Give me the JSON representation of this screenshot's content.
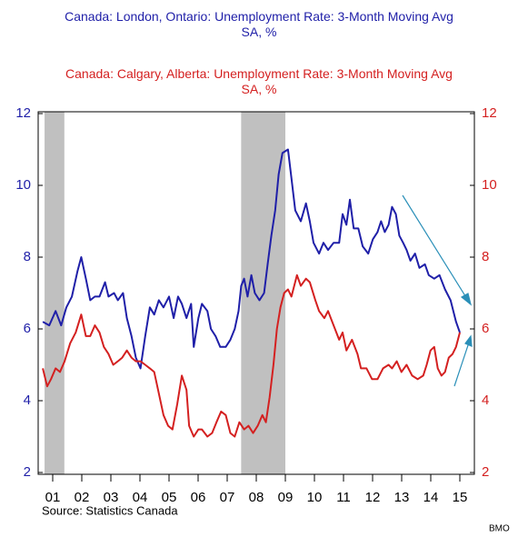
{
  "chart_data": {
    "type": "line",
    "xlim": [
      2001,
      2016
    ],
    "xticks": [
      {
        "value": 2001.5,
        "label": "01"
      },
      {
        "value": 2002.5,
        "label": "02"
      },
      {
        "value": 2003.5,
        "label": "03"
      },
      {
        "value": 2004.5,
        "label": "04"
      },
      {
        "value": 2005.5,
        "label": "05"
      },
      {
        "value": 2006.5,
        "label": "06"
      },
      {
        "value": 2007.5,
        "label": "07"
      },
      {
        "value": 2008.5,
        "label": "08"
      },
      {
        "value": 2009.5,
        "label": "09"
      },
      {
        "value": 2010.5,
        "label": "10"
      },
      {
        "value": 2011.5,
        "label": "11"
      },
      {
        "value": 2012.5,
        "label": "12"
      },
      {
        "value": 2013.5,
        "label": "13"
      },
      {
        "value": 2014.5,
        "label": "14"
      },
      {
        "value": 2015.5,
        "label": "15"
      }
    ],
    "ylim": [
      2,
      12
    ],
    "yticks": [
      2,
      4,
      6,
      8,
      10,
      12
    ],
    "y2lim": [
      2,
      12
    ],
    "y2ticks": [
      2,
      4,
      6,
      8,
      10,
      12
    ],
    "shaded_periods": [
      [
        2001.22,
        2001.9
      ],
      [
        2007.98,
        2009.5
      ]
    ],
    "shade_color": "#c0c0c0",
    "source": "Source:  Statistics Canada",
    "credit": "BMO",
    "series": [
      {
        "name": "Canada: London, Ontario: Unemployment Rate: 3-Month Moving Avg SA, %",
        "color": "#1f1fa8",
        "x": [
          2001.16,
          2001.38,
          2001.6,
          2001.79,
          2001.97,
          2002.16,
          2002.35,
          2002.48,
          2002.64,
          2002.79,
          2002.95,
          2003.11,
          2003.3,
          2003.42,
          2003.61,
          2003.74,
          2003.92,
          2004.05,
          2004.21,
          2004.36,
          2004.52,
          2004.68,
          2004.84,
          2004.99,
          2005.15,
          2005.31,
          2005.5,
          2005.66,
          2005.81,
          2005.94,
          2006.1,
          2006.26,
          2006.35,
          2006.51,
          2006.63,
          2006.82,
          2006.94,
          2007.1,
          2007.26,
          2007.45,
          2007.61,
          2007.76,
          2007.89,
          2007.98,
          2008.08,
          2008.2,
          2008.33,
          2008.45,
          2008.61,
          2008.77,
          2008.89,
          2009.02,
          2009.15,
          2009.27,
          2009.4,
          2009.59,
          2009.71,
          2009.84,
          2010.03,
          2010.21,
          2010.34,
          2010.47,
          2010.66,
          2010.81,
          2010.97,
          2011.16,
          2011.35,
          2011.47,
          2011.6,
          2011.72,
          2011.85,
          2012.01,
          2012.16,
          2012.35,
          2012.51,
          2012.67,
          2012.79,
          2012.92,
          2013.05,
          2013.17,
          2013.3,
          2013.42,
          2013.55,
          2013.67,
          2013.8,
          2013.96,
          2014.11,
          2014.3,
          2014.43,
          2014.62,
          2014.8,
          2014.99,
          2015.18,
          2015.37,
          2015.5
        ],
        "values": [
          6.2,
          6.1,
          6.5,
          6.1,
          6.6,
          6.9,
          7.6,
          8.0,
          7.4,
          6.8,
          6.9,
          6.9,
          7.3,
          6.9,
          7.0,
          6.8,
          7.0,
          6.3,
          5.8,
          5.2,
          4.9,
          5.8,
          6.6,
          6.4,
          6.8,
          6.6,
          6.9,
          6.3,
          6.9,
          6.7,
          6.3,
          6.7,
          5.5,
          6.3,
          6.7,
          6.5,
          6.0,
          5.8,
          5.5,
          5.5,
          5.7,
          6.0,
          6.5,
          7.2,
          7.4,
          6.9,
          7.5,
          7.0,
          6.8,
          7.0,
          7.8,
          8.6,
          9.3,
          10.3,
          10.9,
          11.0,
          10.2,
          9.3,
          9.0,
          9.5,
          9.0,
          8.4,
          8.1,
          8.4,
          8.2,
          8.4,
          8.4,
          9.2,
          8.9,
          9.6,
          8.8,
          8.8,
          8.3,
          8.1,
          8.5,
          8.7,
          9.0,
          8.7,
          8.9,
          9.4,
          9.2,
          8.6,
          8.4,
          8.2,
          7.9,
          8.1,
          7.7,
          7.8,
          7.5,
          7.4,
          7.5,
          7.1,
          6.8,
          6.2,
          5.9
        ]
      },
      {
        "name": "Canada: Calgary, Alberta: Unemployment Rate: 3-Month Moving Avg SA, %",
        "color": "#d42020",
        "axis": "y2",
        "x": [
          2001.16,
          2001.31,
          2001.44,
          2001.6,
          2001.75,
          2001.91,
          2002.1,
          2002.29,
          2002.48,
          2002.64,
          2002.79,
          2002.95,
          2003.11,
          2003.26,
          2003.42,
          2003.58,
          2003.74,
          2003.89,
          2004.05,
          2004.21,
          2004.36,
          2004.52,
          2004.68,
          2004.84,
          2004.99,
          2005.15,
          2005.31,
          2005.47,
          2005.62,
          2005.78,
          2005.94,
          2006.1,
          2006.19,
          2006.35,
          2006.51,
          2006.63,
          2006.82,
          2006.98,
          2007.13,
          2007.29,
          2007.45,
          2007.61,
          2007.76,
          2007.92,
          2008.08,
          2008.23,
          2008.39,
          2008.55,
          2008.71,
          2008.83,
          2008.96,
          2009.09,
          2009.21,
          2009.33,
          2009.46,
          2009.59,
          2009.71,
          2009.9,
          2010.03,
          2010.21,
          2010.34,
          2010.53,
          2010.66,
          2010.84,
          2010.97,
          2011.16,
          2011.35,
          2011.47,
          2011.6,
          2011.79,
          2011.98,
          2012.1,
          2012.29,
          2012.48,
          2012.67,
          2012.86,
          2013.05,
          2013.17,
          2013.33,
          2013.49,
          2013.67,
          2013.86,
          2014.05,
          2014.24,
          2014.36,
          2014.49,
          2014.62,
          2014.74,
          2014.87,
          2014.99,
          2015.12,
          2015.25,
          2015.37,
          2015.5
        ],
        "values": [
          4.9,
          4.4,
          4.6,
          4.9,
          4.8,
          5.1,
          5.6,
          5.9,
          6.4,
          5.8,
          5.8,
          6.1,
          5.9,
          5.5,
          5.3,
          5.0,
          5.1,
          5.2,
          5.4,
          5.2,
          5.1,
          5.1,
          5.0,
          4.9,
          4.8,
          4.2,
          3.6,
          3.3,
          3.2,
          3.9,
          4.7,
          4.3,
          3.3,
          3.0,
          3.2,
          3.2,
          3.0,
          3.1,
          3.4,
          3.7,
          3.6,
          3.1,
          3.0,
          3.4,
          3.2,
          3.3,
          3.1,
          3.3,
          3.6,
          3.4,
          4.1,
          5.0,
          6.0,
          6.6,
          7.0,
          7.1,
          6.9,
          7.5,
          7.2,
          7.4,
          7.3,
          6.8,
          6.5,
          6.3,
          6.5,
          6.1,
          5.7,
          5.9,
          5.4,
          5.7,
          5.3,
          4.9,
          4.9,
          4.6,
          4.6,
          4.9,
          5.0,
          4.9,
          5.1,
          4.8,
          5.0,
          4.7,
          4.6,
          4.7,
          5.0,
          5.4,
          5.5,
          4.9,
          4.7,
          4.8,
          5.2,
          5.3,
          5.5,
          5.9
        ]
      }
    ]
  }
}
